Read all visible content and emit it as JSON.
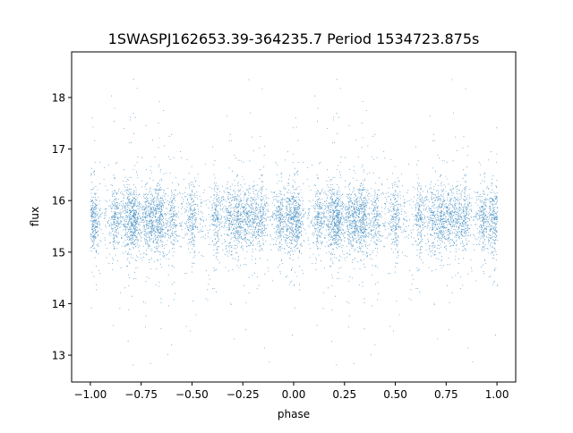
{
  "chart_data": {
    "type": "scatter",
    "title": "1SWASPJ162653.39-364235.7 Period 1534723.875s",
    "xlabel": "phase",
    "ylabel": "flux",
    "xlim": [
      -1.092,
      1.092
    ],
    "ylim": [
      12.48,
      18.885
    ],
    "xticks": [
      -1.0,
      -0.75,
      -0.5,
      -0.25,
      0.0,
      0.25,
      0.5,
      0.75,
      1.0
    ],
    "xtick_labels": [
      "−1.00",
      "−0.75",
      "−0.50",
      "−0.25",
      "0.00",
      "0.25",
      "0.50",
      "0.75",
      "1.00"
    ],
    "yticks": [
      13,
      14,
      15,
      16,
      17,
      18
    ],
    "ytick_labels": [
      "13",
      "14",
      "15",
      "16",
      "17",
      "18"
    ],
    "grid": false,
    "marker_color": "#1f77b4",
    "series": [
      {
        "description_of_shape": null,
        "typical_flux_range": [
          15.0,
          16.4
        ],
        "flux_extremes": [
          12.8,
          18.6
        ],
        "phase_range": [
          -1.0,
          1.0
        ],
        "repeats_with_period_in_phase": 1.0
      }
    ]
  }
}
